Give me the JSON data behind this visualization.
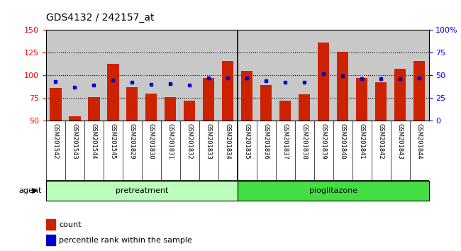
{
  "title": "GDS4132 / 242157_at",
  "samples": [
    "GSM201542",
    "GSM201543",
    "GSM201544",
    "GSM201545",
    "GSM201829",
    "GSM201830",
    "GSM201831",
    "GSM201832",
    "GSM201833",
    "GSM201834",
    "GSM201835",
    "GSM201836",
    "GSM201837",
    "GSM201838",
    "GSM201839",
    "GSM201840",
    "GSM201841",
    "GSM201842",
    "GSM201843",
    "GSM201844"
  ],
  "counts": [
    86,
    55,
    76,
    113,
    87,
    80,
    76,
    72,
    97,
    116,
    105,
    89,
    72,
    79,
    136,
    126,
    97,
    92,
    107,
    116
  ],
  "percentiles": [
    43,
    37,
    39,
    45,
    42,
    40,
    41,
    39,
    47,
    47,
    47,
    44,
    42,
    42,
    52,
    49,
    46,
    46,
    46,
    47
  ],
  "groups": [
    {
      "label": "pretreatment",
      "start": 0,
      "end": 10,
      "color": "#AAFFAA"
    },
    {
      "label": "pioglitazone",
      "start": 10,
      "end": 20,
      "color": "#44DD44"
    }
  ],
  "ylim_left": [
    50,
    150
  ],
  "ylim_right": [
    0,
    100
  ],
  "yticks_left": [
    50,
    75,
    100,
    125,
    150
  ],
  "yticks_right": [
    0,
    25,
    50,
    75,
    100
  ],
  "ytick_labels_right": [
    "0",
    "25",
    "50",
    "75",
    "100%"
  ],
  "bar_color": "#CC2200",
  "dot_color": "#0000CC",
  "bg_color": "#C8C8C8",
  "title_fontsize": 10,
  "agent_label": "agent",
  "legend_count": "count",
  "legend_percentile": "percentile rank within the sample"
}
